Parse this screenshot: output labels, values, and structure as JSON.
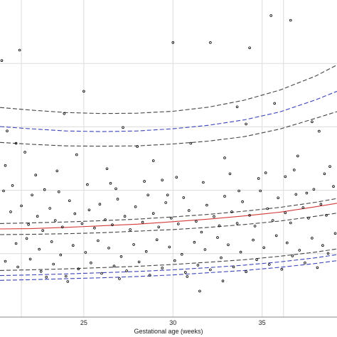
{
  "chart_data": {
    "type": "scatter",
    "title": "",
    "xlabel": "Gestational age (weeks)",
    "ylabel": "",
    "xlim": [
      20.3,
      39.2
    ],
    "ylim": [
      0,
      1
    ],
    "xticks": [
      25,
      30,
      35
    ],
    "xtick_labels": [
      "25",
      "30",
      "35"
    ],
    "grid": true,
    "legend": "none",
    "colors": {
      "points": "#000000",
      "outer_percentile_curves": "#444444",
      "blue_curves": "#3b44b8",
      "median_curve": "#d23a3a",
      "grid": "#dcdcdc",
      "frame": "#888888"
    },
    "curves": [
      {
        "style": "dashed",
        "color": "#444444",
        "x": [
          20.3,
          22,
          24,
          26,
          28,
          30,
          32,
          34,
          36,
          38,
          39.2
        ],
        "y": [
          0.661,
          0.653,
          0.645,
          0.642,
          0.643,
          0.649,
          0.662,
          0.684,
          0.716,
          0.76,
          0.795
        ]
      },
      {
        "style": "dashed",
        "color": "#3b44b8",
        "x": [
          20.3,
          22,
          24,
          26,
          28,
          30,
          32,
          34,
          36,
          38,
          39.2
        ],
        "y": [
          0.601,
          0.594,
          0.587,
          0.585,
          0.587,
          0.594,
          0.605,
          0.622,
          0.647,
          0.685,
          0.712
        ]
      },
      {
        "style": "dashed",
        "color": "#444444",
        "x": [
          20.3,
          22,
          24,
          26,
          28,
          30,
          32,
          34,
          36,
          38,
          39.2
        ],
        "y": [
          0.551,
          0.545,
          0.54,
          0.539,
          0.54,
          0.546,
          0.555,
          0.569,
          0.593,
          0.627,
          0.648
        ]
      },
      {
        "style": "dashed",
        "color": "#444444",
        "x": [
          20.3,
          22,
          24,
          26,
          28,
          30,
          32,
          34,
          36,
          38,
          39.2
        ],
        "y": [
          0.295,
          0.297,
          0.3,
          0.304,
          0.309,
          0.316,
          0.324,
          0.334,
          0.346,
          0.362,
          0.374
        ]
      },
      {
        "style": "solid",
        "color": "#d23a3a",
        "x": [
          20.3,
          22,
          24,
          26,
          28,
          30,
          32,
          34,
          36,
          38,
          39.2
        ],
        "y": [
          0.278,
          0.279,
          0.283,
          0.288,
          0.293,
          0.301,
          0.309,
          0.319,
          0.331,
          0.348,
          0.359
        ]
      },
      {
        "style": "dashed",
        "color": "#444444",
        "x": [
          20.3,
          22,
          24,
          26,
          28,
          30,
          32,
          34,
          36,
          38,
          39.2
        ],
        "y": [
          0.26,
          0.261,
          0.263,
          0.266,
          0.271,
          0.276,
          0.283,
          0.292,
          0.303,
          0.318,
          0.328
        ]
      },
      {
        "style": "dashed",
        "color": "#444444",
        "x": [
          20.3,
          22,
          24,
          26,
          28,
          30,
          32,
          34,
          36,
          38,
          39.2
        ],
        "y": [
          0.147,
          0.149,
          0.152,
          0.156,
          0.16,
          0.166,
          0.173,
          0.181,
          0.192,
          0.205,
          0.215
        ]
      },
      {
        "style": "dashed",
        "color": "#3b44b8",
        "x": [
          20.3,
          22,
          24,
          26,
          28,
          30,
          32,
          34,
          36,
          38,
          39.2
        ],
        "y": [
          0.131,
          0.133,
          0.136,
          0.14,
          0.144,
          0.149,
          0.156,
          0.164,
          0.174,
          0.187,
          0.197
        ]
      },
      {
        "style": "dashed",
        "color": "#3b44b8",
        "x": [
          20.3,
          22,
          24,
          26,
          28,
          30,
          32,
          34,
          36,
          38,
          39.2
        ],
        "y": [
          0.116,
          0.118,
          0.121,
          0.124,
          0.128,
          0.133,
          0.14,
          0.147,
          0.157,
          0.169,
          0.178
        ]
      }
    ],
    "points": [
      [
        20.4,
        0.809
      ],
      [
        21.4,
        0.842
      ],
      [
        20.7,
        0.587
      ],
      [
        21.2,
        0.548
      ],
      [
        20.6,
        0.478
      ],
      [
        21.7,
        0.52
      ],
      [
        22.3,
        0.448
      ],
      [
        21.0,
        0.415
      ],
      [
        20.5,
        0.398
      ],
      [
        22.8,
        0.402
      ],
      [
        23.5,
        0.461
      ],
      [
        24.6,
        0.512
      ],
      [
        23.9,
        0.642
      ],
      [
        25.0,
        0.712
      ],
      [
        27.2,
        0.598
      ],
      [
        26.5,
        0.422
      ],
      [
        28.0,
        0.538
      ],
      [
        28.9,
        0.493
      ],
      [
        30.0,
        0.866
      ],
      [
        32.1,
        0.866
      ],
      [
        34.3,
        0.849
      ],
      [
        35.5,
        0.951
      ],
      [
        36.6,
        0.936
      ],
      [
        33.6,
        0.663
      ],
      [
        34.1,
        0.609
      ],
      [
        35.7,
        0.674
      ],
      [
        37.8,
        0.616
      ],
      [
        38.2,
        0.586
      ],
      [
        31.0,
        0.548
      ],
      [
        32.9,
        0.502
      ],
      [
        37.0,
        0.508
      ],
      [
        38.8,
        0.475
      ],
      [
        29.4,
        0.432
      ],
      [
        35.2,
        0.455
      ],
      [
        36.3,
        0.443
      ],
      [
        20.9,
        0.332
      ],
      [
        21.5,
        0.351
      ],
      [
        21.9,
        0.292
      ],
      [
        22.4,
        0.318
      ],
      [
        22.7,
        0.273
      ],
      [
        23.1,
        0.343
      ],
      [
        23.4,
        0.305
      ],
      [
        23.8,
        0.284
      ],
      [
        24.2,
        0.367
      ],
      [
        24.5,
        0.326
      ],
      [
        24.9,
        0.295
      ],
      [
        25.3,
        0.338
      ],
      [
        25.6,
        0.281
      ],
      [
        25.9,
        0.356
      ],
      [
        26.2,
        0.307
      ],
      [
        26.6,
        0.291
      ],
      [
        26.9,
        0.372
      ],
      [
        27.3,
        0.318
      ],
      [
        27.6,
        0.276
      ],
      [
        27.9,
        0.348
      ],
      [
        28.3,
        0.299
      ],
      [
        28.6,
        0.385
      ],
      [
        28.9,
        0.327
      ],
      [
        29.2,
        0.284
      ],
      [
        29.6,
        0.361
      ],
      [
        29.9,
        0.312
      ],
      [
        30.3,
        0.294
      ],
      [
        30.6,
        0.377
      ],
      [
        30.9,
        0.336
      ],
      [
        31.3,
        0.302
      ],
      [
        31.6,
        0.268
      ],
      [
        31.9,
        0.353
      ],
      [
        32.3,
        0.317
      ],
      [
        32.6,
        0.288
      ],
      [
        32.9,
        0.381
      ],
      [
        33.3,
        0.332
      ],
      [
        33.6,
        0.296
      ],
      [
        33.9,
        0.364
      ],
      [
        34.3,
        0.321
      ],
      [
        34.6,
        0.287
      ],
      [
        34.9,
        0.398
      ],
      [
        35.3,
        0.342
      ],
      [
        35.6,
        0.305
      ],
      [
        35.9,
        0.376
      ],
      [
        36.3,
        0.329
      ],
      [
        36.6,
        0.297
      ],
      [
        36.9,
        0.387
      ],
      [
        37.3,
        0.345
      ],
      [
        37.6,
        0.312
      ],
      [
        37.9,
        0.403
      ],
      [
        38.3,
        0.356
      ],
      [
        38.6,
        0.321
      ],
      [
        39.0,
        0.412
      ],
      [
        21.2,
        0.232
      ],
      [
        21.8,
        0.248
      ],
      [
        22.5,
        0.214
      ],
      [
        23.2,
        0.238
      ],
      [
        23.7,
        0.196
      ],
      [
        24.4,
        0.226
      ],
      [
        25.1,
        0.204
      ],
      [
        25.8,
        0.241
      ],
      [
        26.4,
        0.218
      ],
      [
        27.1,
        0.191
      ],
      [
        27.8,
        0.229
      ],
      [
        28.5,
        0.207
      ],
      [
        29.1,
        0.244
      ],
      [
        29.8,
        0.221
      ],
      [
        30.5,
        0.198
      ],
      [
        31.2,
        0.236
      ],
      [
        31.8,
        0.213
      ],
      [
        32.5,
        0.251
      ],
      [
        33.1,
        0.228
      ],
      [
        33.8,
        0.205
      ],
      [
        34.5,
        0.243
      ],
      [
        35.1,
        0.219
      ],
      [
        35.8,
        0.257
      ],
      [
        36.4,
        0.234
      ],
      [
        37.1,
        0.211
      ],
      [
        37.8,
        0.249
      ],
      [
        38.4,
        0.226
      ],
      [
        39.1,
        0.264
      ],
      [
        20.6,
        0.176
      ],
      [
        21.3,
        0.158
      ],
      [
        22.0,
        0.183
      ],
      [
        22.6,
        0.144
      ],
      [
        23.3,
        0.167
      ],
      [
        24.0,
        0.129
      ],
      [
        24.7,
        0.152
      ],
      [
        25.4,
        0.171
      ],
      [
        26.0,
        0.138
      ],
      [
        26.7,
        0.161
      ],
      [
        27.4,
        0.146
      ],
      [
        28.1,
        0.174
      ],
      [
        28.7,
        0.132
      ],
      [
        29.4,
        0.155
      ],
      [
        30.1,
        0.178
      ],
      [
        30.7,
        0.141
      ],
      [
        31.4,
        0.164
      ],
      [
        32.1,
        0.149
      ],
      [
        32.7,
        0.187
      ],
      [
        33.4,
        0.158
      ],
      [
        34.1,
        0.143
      ],
      [
        34.7,
        0.181
      ],
      [
        35.4,
        0.166
      ],
      [
        36.1,
        0.151
      ],
      [
        36.7,
        0.193
      ],
      [
        37.4,
        0.171
      ],
      [
        38.1,
        0.156
      ],
      [
        38.7,
        0.201
      ],
      [
        22.1,
        0.385
      ],
      [
        23.6,
        0.395
      ],
      [
        25.2,
        0.418
      ],
      [
        26.8,
        0.405
      ],
      [
        28.4,
        0.428
      ],
      [
        30.2,
        0.441
      ],
      [
        31.7,
        0.425
      ],
      [
        33.2,
        0.452
      ],
      [
        34.8,
        0.437
      ],
      [
        36.8,
        0.464
      ],
      [
        38.5,
        0.452
      ],
      [
        31.5,
        0.082
      ],
      [
        32.8,
        0.114
      ],
      [
        30.8,
        0.128
      ],
      [
        27.0,
        0.121
      ],
      [
        24.1,
        0.112
      ],
      [
        22.9,
        0.126
      ],
      [
        26.3,
        0.468
      ],
      [
        29.7,
        0.385
      ],
      [
        33.7,
        0.398
      ],
      [
        37.5,
        0.391
      ]
    ]
  }
}
